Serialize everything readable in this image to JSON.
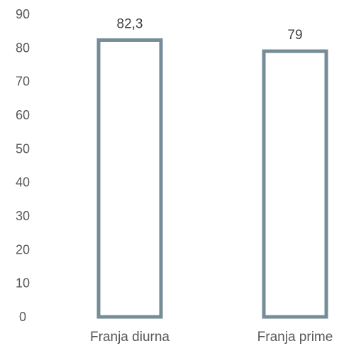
{
  "chart_data": {
    "type": "bar",
    "categories": [
      "Franja diurna",
      "Franja prime"
    ],
    "values": [
      82.3,
      79
    ],
    "data_labels": [
      "82,3",
      "79"
    ],
    "ylim": [
      0,
      90
    ],
    "yticks": [
      0,
      10,
      20,
      30,
      40,
      50,
      60,
      70,
      80,
      90
    ],
    "grid": false,
    "legend": "none",
    "bar_style": "outlined",
    "bar_color": "#768c97",
    "text_color": "#595959"
  }
}
